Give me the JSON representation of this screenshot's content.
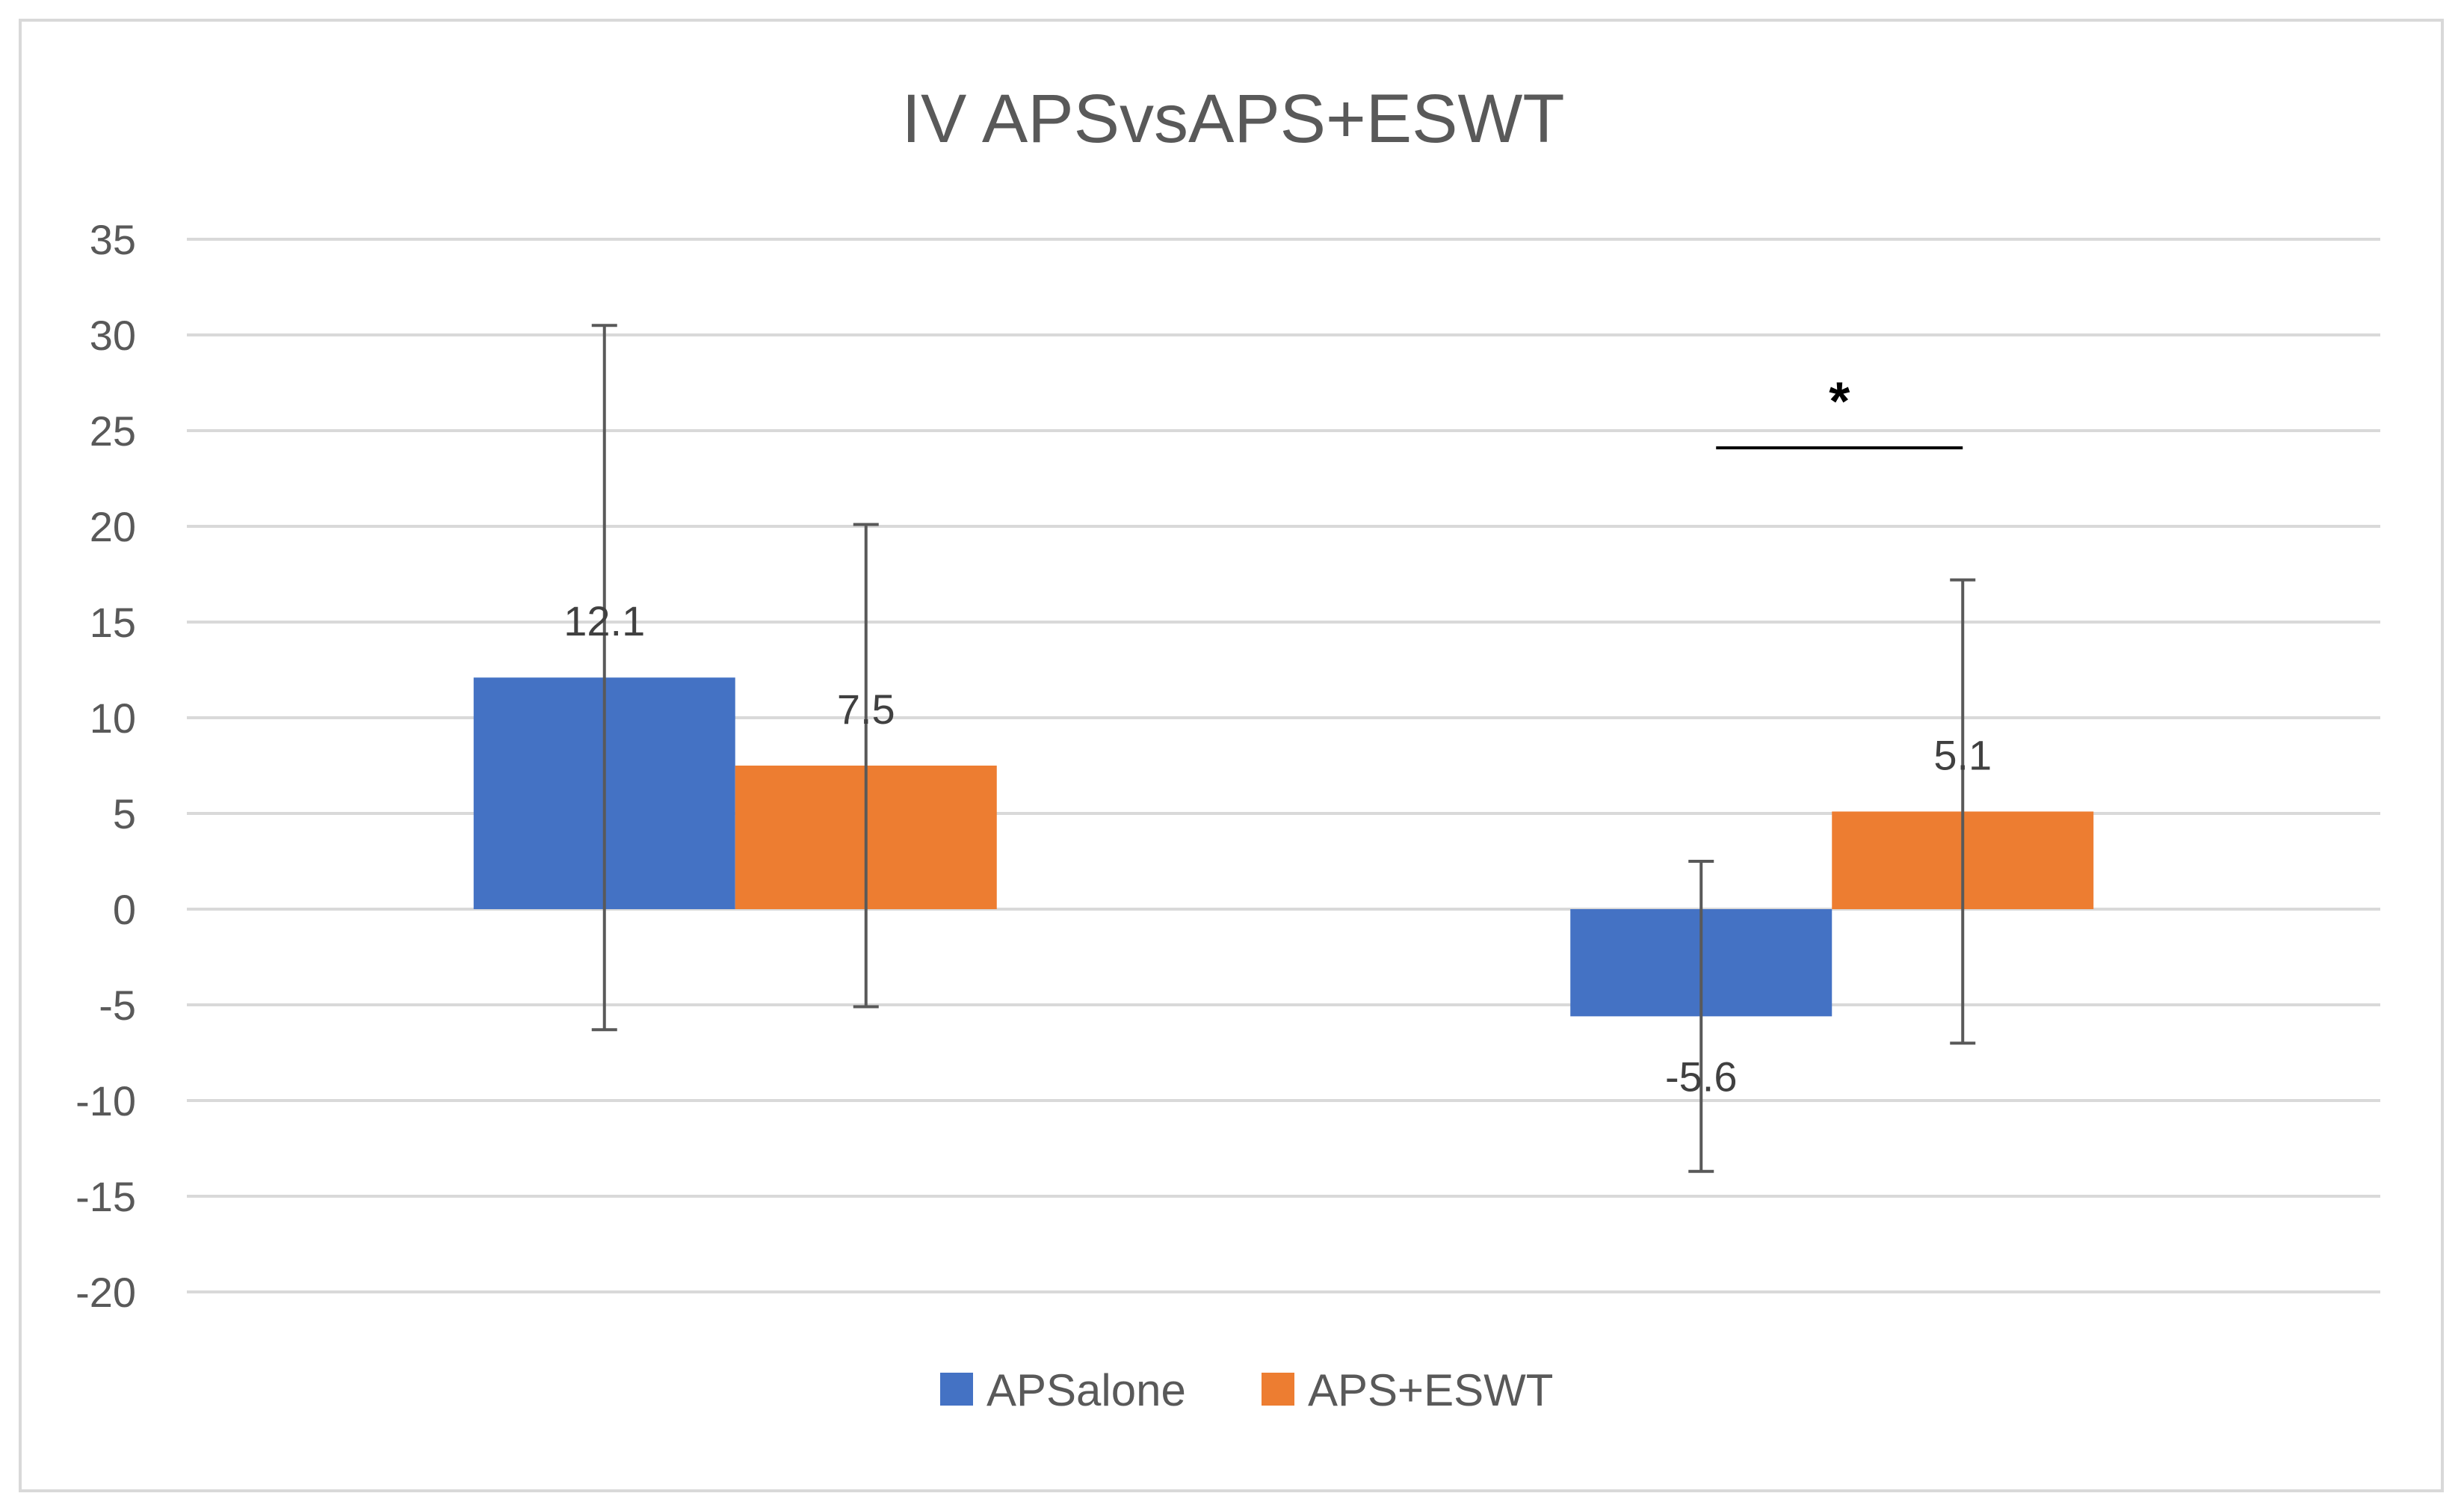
{
  "chart_data": {
    "type": "bar",
    "title": "IV APSvsAPS+ESWT",
    "xlabel": "",
    "ylabel": "",
    "ylim": [
      -20,
      35
    ],
    "yticks": [
      35,
      30,
      25,
      20,
      15,
      10,
      5,
      0,
      -5,
      -10,
      -15,
      -20
    ],
    "grid": true,
    "legend_position": "bottom",
    "categories": [
      "",
      ""
    ],
    "series": [
      {
        "name": "APSalone",
        "color": "#4472C4",
        "values": [
          12.1,
          -5.6
        ],
        "labels": [
          "12.1",
          "-5.6"
        ],
        "error_low": [
          -6.3,
          -13.7
        ],
        "error_high": [
          30.5,
          2.5
        ]
      },
      {
        "name": "APS+ESWT",
        "color": "#ED7D31",
        "values": [
          7.5,
          5.1
        ],
        "labels": [
          "7.5",
          "5.1"
        ],
        "error_low": [
          -5.1,
          -7.0
        ],
        "error_high": [
          20.1,
          17.2
        ]
      }
    ],
    "annotations": [
      {
        "text": "*",
        "category_index": 1,
        "bracket_y": 24.1,
        "text_y": 26.5
      }
    ]
  }
}
